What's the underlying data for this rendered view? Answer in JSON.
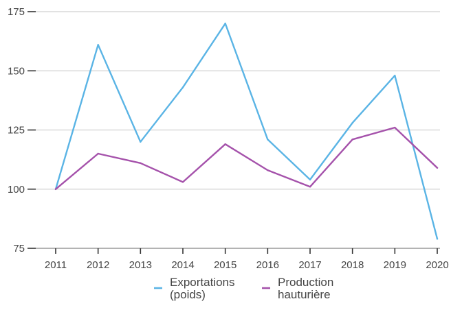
{
  "chart_data": {
    "type": "line",
    "title": "",
    "xlabel": "",
    "ylabel": "",
    "x": [
      "2011",
      "2012",
      "2013",
      "2014",
      "2015",
      "2016",
      "2017",
      "2018",
      "2019",
      "2020"
    ],
    "ylim": [
      75,
      175
    ],
    "yticks": [
      "75",
      "100",
      "125",
      "150",
      "175"
    ],
    "grid": "horizontal",
    "legend_position": "bottom",
    "series": [
      {
        "name_lines": [
          "Exportations",
          "(poids)"
        ],
        "color": "#5ab4e5",
        "values": [
          100,
          161,
          120,
          143,
          170,
          121,
          104,
          128,
          148,
          79
        ]
      },
      {
        "name_lines": [
          "Production",
          "hauturière"
        ],
        "color": "#a552ab",
        "values": [
          100,
          115,
          111,
          103,
          119,
          108,
          101,
          121,
          126,
          109
        ]
      }
    ]
  }
}
